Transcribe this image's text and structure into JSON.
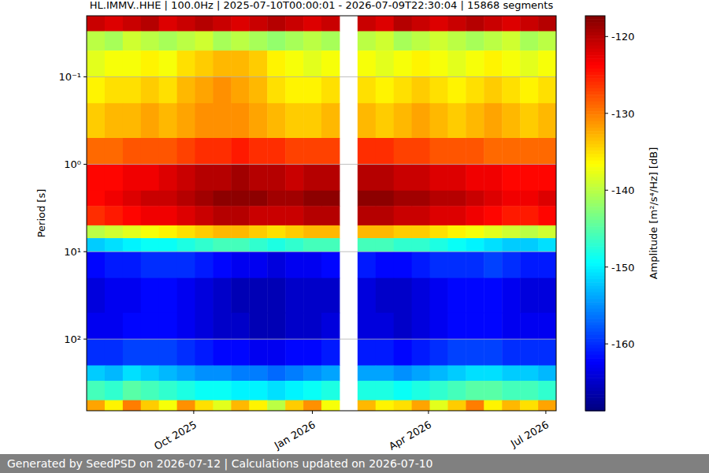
{
  "chart_data": {
    "type": "heatmap",
    "title": "HL.IMMV..HHE | 100.0Hz | 2025-07-10T00:00:01 - 2026-07-09T22:30:04 | 15868 segments",
    "ylabel": "Period [s]",
    "x_edges": [
      "2025-07-10",
      "2025-07-24",
      "2025-08-07",
      "2025-08-21",
      "2025-09-04",
      "2025-09-18",
      "2025-10-02",
      "2025-10-16",
      "2025-10-30",
      "2025-11-13",
      "2025-11-27",
      "2025-12-11",
      "2025-12-25",
      "2026-01-08",
      "2026-01-22",
      "2026-02-05",
      "2026-02-19",
      "2026-03-05",
      "2026-03-19",
      "2026-04-02",
      "2026-04-16",
      "2026-04-30",
      "2026-05-14",
      "2026-05-28",
      "2026-06-11",
      "2026-06-25",
      "2026-07-09"
    ],
    "y_edges": [
      0.02,
      0.03,
      0.05,
      0.1,
      0.2,
      0.5,
      1,
      2,
      3,
      5,
      7,
      10,
      20,
      50,
      100,
      200,
      300,
      500,
      660
    ],
    "cells": [
      [
        -121,
        -122,
        -121,
        -120,
        -122,
        -121,
        -120,
        -121,
        -122,
        -121,
        -120,
        -121,
        -122,
        -121,
        null,
        -121,
        -122,
        -120,
        -121,
        -122,
        -121,
        -120,
        -121,
        -122,
        -121,
        -120
      ],
      [
        -140,
        -141,
        -139,
        -140,
        -141,
        -140,
        -139,
        -141,
        -140,
        -141,
        -142,
        -141,
        -140,
        -141,
        null,
        -140,
        -139,
        -141,
        -140,
        -139,
        -140,
        -141,
        -140,
        -139,
        -141,
        -140
      ],
      [
        -138,
        -137,
        -137,
        -136,
        -137,
        -135,
        -134,
        -133,
        -133,
        -134,
        -136,
        -137,
        -138,
        -137,
        null,
        -137,
        -138,
        -137,
        -136,
        -137,
        -138,
        -137,
        -136,
        -137,
        -138,
        -137
      ],
      [
        -136,
        -135,
        -135,
        -134,
        -135,
        -133,
        -132,
        -131,
        -132,
        -133,
        -135,
        -136,
        -136,
        -135,
        null,
        -135,
        -136,
        -135,
        -134,
        -135,
        -136,
        -135,
        -134,
        -135,
        -136,
        -135
      ],
      [
        -134,
        -133,
        -133,
        -132,
        -133,
        -132,
        -131,
        -131,
        -131,
        -132,
        -133,
        -134,
        -134,
        -133,
        null,
        -133,
        -134,
        -133,
        -132,
        -133,
        -134,
        -133,
        -132,
        -133,
        -134,
        -133
      ],
      [
        -129,
        -129,
        -128,
        -128,
        -128,
        -127,
        -126,
        -126,
        -125,
        -126,
        -126,
        -127,
        -127,
        -127,
        null,
        -126,
        -126,
        -127,
        -127,
        -128,
        -128,
        -128,
        -129,
        -129,
        -129,
        -129
      ],
      [
        -124,
        -124,
        -123,
        -123,
        -122,
        -121,
        -120,
        -120,
        -119,
        -120,
        -120,
        -121,
        -120,
        -120,
        null,
        -120,
        -120,
        -121,
        -121,
        -122,
        -122,
        -123,
        -123,
        -124,
        -124,
        -124
      ],
      [
        -124,
        -123,
        -122,
        -121,
        -121,
        -120,
        -119,
        -118,
        -118,
        -118,
        -119,
        -119,
        -118,
        -118,
        null,
        -118,
        -118,
        -119,
        -119,
        -120,
        -120,
        -121,
        -122,
        -123,
        -123,
        -122
      ],
      [
        -126,
        -125,
        -124,
        -123,
        -123,
        -122,
        -121,
        -120,
        -120,
        -121,
        -121,
        -121,
        -120,
        -120,
        null,
        -120,
        -120,
        -121,
        -121,
        -122,
        -122,
        -123,
        -124,
        -125,
        -125,
        -124
      ],
      [
        -140,
        -139,
        -138,
        -137,
        -136,
        -135,
        -134,
        -133,
        -133,
        -134,
        -135,
        -134,
        -133,
        -133,
        null,
        -133,
        -133,
        -134,
        -134,
        -135,
        -136,
        -137,
        -138,
        -139,
        -140,
        -139
      ],
      [
        -152,
        -151,
        -150,
        -149,
        -149,
        -148,
        -147,
        -146,
        -146,
        -147,
        -148,
        -147,
        -146,
        -146,
        null,
        -146,
        -146,
        -147,
        -147,
        -148,
        -149,
        -150,
        -151,
        -152,
        -152,
        -151
      ],
      [
        -162,
        -161,
        -161,
        -160,
        -160,
        -160,
        -161,
        -162,
        -163,
        -163,
        -164,
        -163,
        -163,
        -162,
        null,
        -161,
        -162,
        -162,
        -161,
        -160,
        -160,
        -160,
        -159,
        -160,
        -161,
        -161
      ],
      [
        -164,
        -163,
        -163,
        -162,
        -162,
        -163,
        -164,
        -165,
        -166,
        -166,
        -166,
        -165,
        -165,
        -165,
        null,
        -164,
        -165,
        -165,
        -164,
        -163,
        -162,
        -162,
        -162,
        -163,
        -164,
        -164
      ],
      [
        -163,
        -163,
        -162,
        -162,
        -162,
        -163,
        -164,
        -165,
        -165,
        -166,
        -166,
        -165,
        -165,
        -164,
        null,
        -164,
        -164,
        -165,
        -164,
        -163,
        -162,
        -162,
        -162,
        -163,
        -163,
        -163
      ],
      [
        -160,
        -160,
        -159,
        -159,
        -159,
        -160,
        -161,
        -162,
        -162,
        -163,
        -163,
        -162,
        -162,
        -161,
        null,
        -161,
        -161,
        -162,
        -161,
        -160,
        -159,
        -159,
        -159,
        -160,
        -160,
        -160
      ],
      [
        -152,
        -153,
        -151,
        -152,
        -153,
        -154,
        -155,
        -155,
        -156,
        -156,
        -157,
        -156,
        -155,
        -154,
        null,
        -154,
        -154,
        -155,
        -154,
        -153,
        -152,
        -151,
        -151,
        -152,
        -152,
        -153
      ],
      [
        -146,
        -147,
        -145,
        -146,
        -147,
        -148,
        -149,
        -149,
        -150,
        -150,
        -151,
        -150,
        -149,
        -148,
        null,
        -148,
        -148,
        -149,
        -148,
        -147,
        -146,
        -145,
        -145,
        -146,
        -146,
        -147
      ],
      [
        -132,
        -136,
        -130,
        -134,
        -137,
        -131,
        -135,
        -138,
        -133,
        -136,
        -140,
        -134,
        -131,
        -137,
        null,
        -133,
        -136,
        -135,
        -132,
        -138,
        -134,
        -130,
        -136,
        -133,
        -135,
        -132
      ]
    ],
    "xlim": [
      "2025-07-10",
      "2026-07-09"
    ],
    "xticks": [
      {
        "value": "2025-10-01",
        "label": "Oct 2025"
      },
      {
        "value": "2026-01-01",
        "label": "Jan 2026"
      },
      {
        "value": "2026-04-01",
        "label": "Apr 2026"
      },
      {
        "value": "2026-07-01",
        "label": "Jul 2026"
      }
    ],
    "ylim": [
      0.02,
      660
    ],
    "yticks": [
      {
        "value": 0.1,
        "label": "10⁻¹"
      },
      {
        "value": 1,
        "label": "10⁰"
      },
      {
        "value": 10,
        "label": "10¹"
      },
      {
        "value": 100,
        "label": "10²"
      }
    ],
    "log": "y",
    "grid": "y",
    "colorbar": {
      "title": "Amplitude [m²/s⁴/Hz] [dB]",
      "range": [
        -168.7,
        -117.3
      ],
      "ticks": [
        -120,
        -130,
        -140,
        -150,
        -160
      ]
    },
    "footer": "Generated by SeedPSD on 2026-07-12 | Calculations updated on 2026-07-10"
  }
}
